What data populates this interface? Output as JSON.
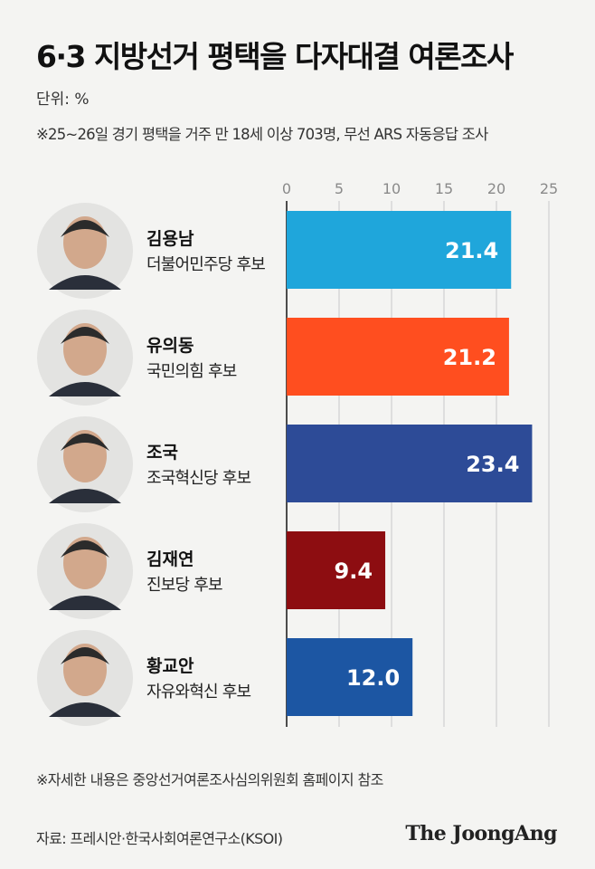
{
  "header": {
    "title": "6·3 지방선거 평택을 다자대결 여론조사",
    "unit": "단위: %",
    "note": "※25~26일 경기 평택을 거주 만 18세 이상 703명, 무선 ARS 자동응답 조사"
  },
  "chart_data": {
    "type": "bar",
    "orientation": "horizontal",
    "xlim": [
      0,
      25
    ],
    "ticks": [
      "0",
      "5",
      "10",
      "15",
      "20",
      "25"
    ],
    "grid": true,
    "categories": [
      {
        "name": "김용남",
        "party": "더불어민주당 후보",
        "value": 21.4,
        "label": "21.4",
        "color": "#1fa6db"
      },
      {
        "name": "유의동",
        "party": "국민의힘 후보",
        "value": 21.2,
        "label": "21.2",
        "color": "#ff4e1f"
      },
      {
        "name": "조국",
        "party": "조국혁신당 후보",
        "value": 23.4,
        "label": "23.4",
        "color": "#2d4b97"
      },
      {
        "name": "김재연",
        "party": "진보당 후보",
        "value": 9.4,
        "label": "9.4",
        "color": "#8d0d11"
      },
      {
        "name": "황교안",
        "party": "자유와혁신 후보",
        "value": 12.0,
        "label": "12.0",
        "color": "#1c56a3"
      }
    ]
  },
  "footer": {
    "footnote": "※자세한 내용은 중앙선거여론조사심의위원회 홈페이지 참조",
    "source": "자료: 프레시안·한국사회여론연구소(KSOI)",
    "logo": "The JoongAng"
  }
}
